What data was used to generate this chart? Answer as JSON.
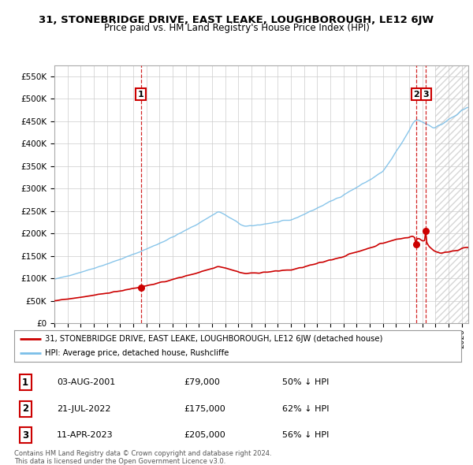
{
  "title": "31, STONEBRIDGE DRIVE, EAST LEAKE, LOUGHBOROUGH, LE12 6JW",
  "subtitle": "Price paid vs. HM Land Registry's House Price Index (HPI)",
  "hpi_color": "#7bbfe8",
  "price_color": "#cc0000",
  "ylim": [
    0,
    575000
  ],
  "yticks": [
    0,
    50000,
    100000,
    150000,
    200000,
    250000,
    300000,
    350000,
    400000,
    450000,
    500000,
    550000
  ],
  "legend_line1": "31, STONEBRIDGE DRIVE, EAST LEAKE, LOUGHBOROUGH, LE12 6JW (detached house)",
  "legend_line2": "HPI: Average price, detached house, Rushcliffe",
  "transactions": [
    {
      "id": 1,
      "date": "03-AUG-2001",
      "price": "£79,000",
      "hpi": "50% ↓ HPI",
      "year": 2001.58
    },
    {
      "id": 2,
      "date": "21-JUL-2022",
      "price": "£175,000",
      "hpi": "62% ↓ HPI",
      "year": 2022.55
    },
    {
      "id": 3,
      "date": "11-APR-2023",
      "price": "£205,000",
      "hpi": "56% ↓ HPI",
      "year": 2023.28
    }
  ],
  "transaction_prices": [
    79000,
    175000,
    205000
  ],
  "transaction_years": [
    2001.58,
    2022.55,
    2023.28
  ],
  "footer_line1": "Contains HM Land Registry data © Crown copyright and database right 2024.",
  "footer_line2": "This data is licensed under the Open Government Licence v3.0.",
  "grid_color": "#cccccc",
  "plot_bg_color": "#ffffff",
  "fig_bg_color": "#ffffff",
  "hatch_start": 2024.0,
  "xmin": 1995.0,
  "xmax": 2026.5
}
